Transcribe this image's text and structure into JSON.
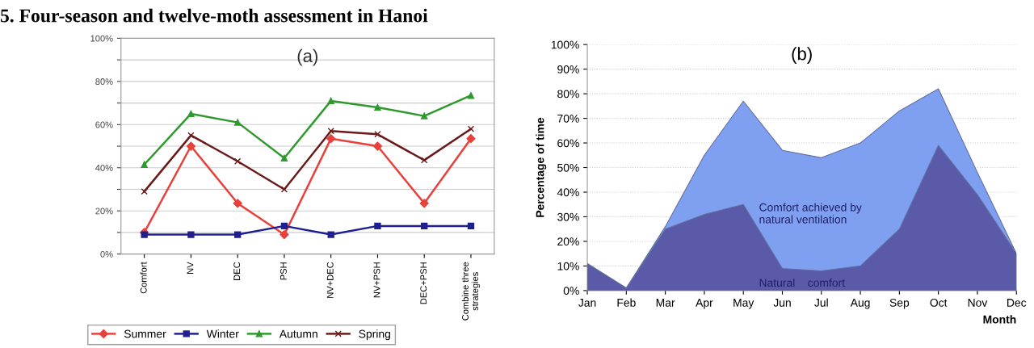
{
  "chart_data": [
    {
      "type": "line",
      "title": "5. Four-season and twelve-moth assessment in Hanoi",
      "subtitle": "(a)",
      "categories": [
        "Comfort",
        "NV",
        "DEC",
        "PSH",
        "NV+DEC",
        "NV+PSH",
        "DEC+PSH",
        "Combine three\nstrategies"
      ],
      "series": [
        {
          "name": "Summer",
          "color": "#e8403a",
          "marker": "diamond",
          "values": [
            10,
            50,
            23.5,
            9,
            53.5,
            50,
            23.5,
            53.5
          ]
        },
        {
          "name": "Winter",
          "color": "#1f1f8f",
          "marker": "square",
          "values": [
            9,
            9,
            9,
            13,
            9,
            13,
            13,
            13
          ]
        },
        {
          "name": "Autumn",
          "color": "#2e9a2e",
          "marker": "triangle",
          "values": [
            41.5,
            65,
            61,
            44.5,
            71,
            68,
            64,
            73.5
          ]
        },
        {
          "name": "Spring",
          "color": "#6b1a1a",
          "marker": "cross",
          "values": [
            29,
            55,
            43,
            30,
            57,
            55.5,
            43.5,
            58
          ]
        }
      ],
      "ylim": [
        0,
        100
      ],
      "yticks": [
        {
          "value": 0,
          "label": "0%"
        },
        {
          "value": 10,
          "label": null
        },
        {
          "value": 20,
          "label": "20%"
        },
        {
          "value": 30,
          "label": null
        },
        {
          "value": 40,
          "label": "40%"
        },
        {
          "value": 50,
          "label": null
        },
        {
          "value": 60,
          "label": "60%"
        },
        {
          "value": 70,
          "label": null
        },
        {
          "value": 80,
          "label": "80%"
        },
        {
          "value": 90,
          "label": null
        },
        {
          "value": 100,
          "label": "100%"
        }
      ],
      "grid": "y",
      "legend": "bottom left"
    },
    {
      "type": "area",
      "title": "(b)",
      "xlabel": "Month",
      "ylabel": "Percentage of time",
      "categories": [
        "Jan",
        "Feb",
        "Mar",
        "Apr",
        "May",
        "Jun",
        "Jul",
        "Aug",
        "Sep",
        "Oct",
        "Nov",
        "Dec"
      ],
      "series": [
        {
          "name": "Comfort achieved by\nnatural ventilation",
          "color": "#7fa0f0",
          "values": [
            11,
            1,
            26,
            55,
            77,
            57,
            54,
            60,
            73,
            82,
            48,
            15
          ]
        },
        {
          "name": "Natural    comfort",
          "color": "#5a5aa8",
          "values": [
            11,
            1,
            25,
            31,
            35,
            9,
            8,
            10,
            25,
            59,
            39,
            15
          ]
        }
      ],
      "ylim": [
        0,
        100
      ],
      "yticks": [
        {
          "value": 0,
          "label": "0%"
        },
        {
          "value": 10,
          "label": "10%"
        },
        {
          "value": 20,
          "label": "20%"
        },
        {
          "value": 30,
          "label": "30%"
        },
        {
          "value": 40,
          "label": "40%"
        },
        {
          "value": 50,
          "label": "50%"
        },
        {
          "value": 60,
          "label": "60%"
        },
        {
          "value": 70,
          "label": "70%"
        },
        {
          "value": 80,
          "label": "80%"
        },
        {
          "value": 90,
          "label": "90%"
        },
        {
          "value": 100,
          "label": "100%"
        }
      ],
      "grid": "y",
      "line_style": "dotted"
    }
  ]
}
